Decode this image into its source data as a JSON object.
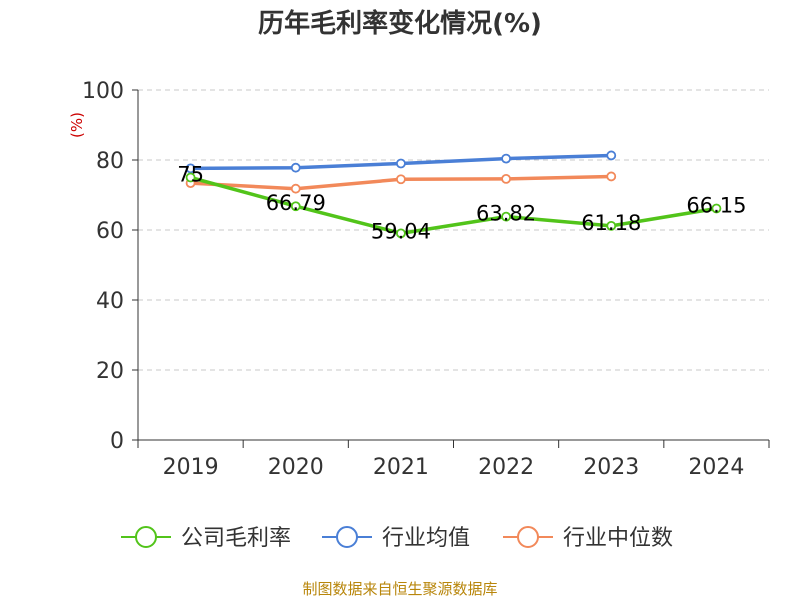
{
  "chart_data": {
    "type": "line",
    "title": "历年毛利率变化情况(%)",
    "ylabel": "(%)",
    "xlabel": "",
    "categories": [
      "2019",
      "2020",
      "2021",
      "2022",
      "2023",
      "2024"
    ],
    "ylim": [
      0,
      100
    ],
    "yticks": [
      "0",
      "20",
      "40",
      "60",
      "80",
      "100"
    ],
    "grid": true,
    "legend_position": "bottom",
    "series": [
      {
        "name": "公司毛利率",
        "color": "#52c41a",
        "values": [
          75,
          66.79,
          59.04,
          63.82,
          61.18,
          66.15
        ],
        "labels": [
          "75",
          "66.79",
          "59.04",
          "63.82",
          "61.18",
          "66.15"
        ]
      },
      {
        "name": "行业均值",
        "color": "#4a7fd6",
        "values": [
          77.6,
          77.8,
          79.0,
          80.4,
          81.3,
          null
        ]
      },
      {
        "name": "行业中位数",
        "color": "#f2895a",
        "values": [
          73.4,
          71.8,
          74.5,
          74.6,
          75.3,
          null
        ]
      }
    ]
  },
  "footer": "制图数据来自恒生聚源数据库"
}
